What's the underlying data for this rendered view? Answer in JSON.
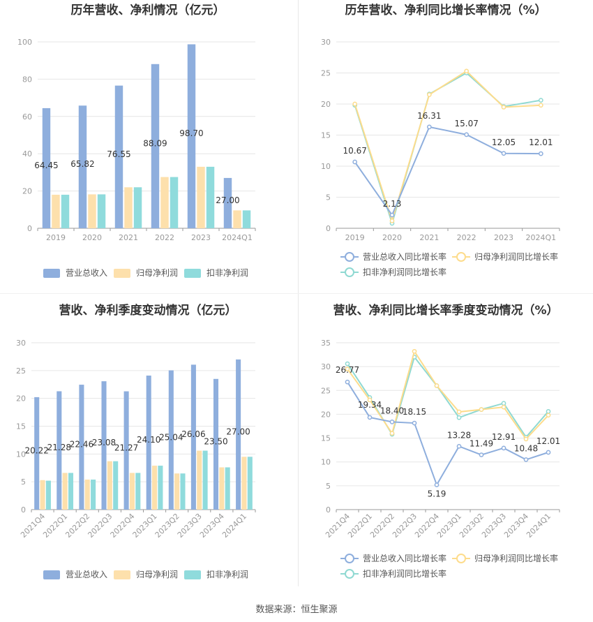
{
  "colors": {
    "revenue": "#8eaedd",
    "net_profit": "#fde0ac",
    "net_profit_ex": "#8fdbdc",
    "revenue_line": "#8eaedd",
    "np_line": "#fddc8c",
    "npex_line": "#8fd9d2"
  },
  "source": "数据来源：恒生聚源",
  "chart_data": [
    {
      "type": "bar",
      "title": "历年营收、净利情况（亿元）",
      "categories": [
        "2019",
        "2020",
        "2021",
        "2022",
        "2023",
        "2024Q1"
      ],
      "ylim": [
        0,
        100
      ],
      "yticks": [
        0,
        20,
        40,
        60,
        80,
        100
      ],
      "series": [
        {
          "name": "营业总收入",
          "values": [
            64.45,
            65.82,
            76.55,
            88.09,
            98.7,
            27.0
          ],
          "labels": [
            "64.45",
            "65.82",
            "76.55",
            "88.09",
            "98.70",
            "27.00"
          ]
        },
        {
          "name": "归母净利润",
          "values": [
            18.0,
            18.2,
            22.0,
            27.5,
            33.0,
            9.6
          ]
        },
        {
          "name": "扣非净利润",
          "values": [
            18.0,
            18.2,
            22.0,
            27.5,
            33.0,
            9.6
          ]
        }
      ],
      "legend": "bottom"
    },
    {
      "type": "line",
      "title": "历年营收、净利同比增长率情况（%）",
      "categories": [
        "2019",
        "2020",
        "2021",
        "2022",
        "2023",
        "2024Q1"
      ],
      "ylim": [
        0,
        30
      ],
      "yticks": [
        0,
        5,
        10,
        15,
        20,
        25,
        30
      ],
      "series": [
        {
          "name": "营业总收入同比增长率",
          "values": [
            10.67,
            2.13,
            16.31,
            15.07,
            12.05,
            12.01
          ],
          "labels": [
            "10.67",
            "2.13",
            "16.31",
            "15.07",
            "12.05",
            "12.01"
          ]
        },
        {
          "name": "归母净利润同比增长率",
          "values": [
            20.0,
            1.2,
            21.5,
            25.3,
            19.5,
            19.8
          ]
        },
        {
          "name": "扣非净利润同比增长率",
          "values": [
            19.8,
            0.8,
            21.6,
            25.0,
            19.6,
            20.6
          ]
        }
      ],
      "legend": "bottom"
    },
    {
      "type": "bar",
      "title": "营收、净利季度变动情况（亿元）",
      "categories": [
        "2021Q4",
        "2022Q1",
        "2022Q2",
        "2022Q3",
        "2022Q4",
        "2023Q1",
        "2023Q2",
        "2023Q3",
        "2023Q4",
        "2024Q1"
      ],
      "ylim": [
        0,
        30
      ],
      "yticks": [
        0,
        5,
        10,
        15,
        20,
        25,
        30
      ],
      "series": [
        {
          "name": "营业总收入",
          "values": [
            20.22,
            21.28,
            22.46,
            23.08,
            21.27,
            24.1,
            25.04,
            26.06,
            23.5,
            27.0
          ],
          "labels": [
            "20.22",
            "21.28",
            "22.46",
            "23.08",
            "21.27",
            "24.10",
            "25.04",
            "26.06",
            "23.50",
            "27.00"
          ]
        },
        {
          "name": "归母净利润",
          "values": [
            5.3,
            6.6,
            5.4,
            8.7,
            6.6,
            7.9,
            6.5,
            10.6,
            7.6,
            9.5
          ]
        },
        {
          "name": "扣非净利润",
          "values": [
            5.2,
            6.6,
            5.4,
            8.7,
            6.6,
            7.9,
            6.5,
            10.6,
            7.6,
            9.5
          ]
        }
      ],
      "legend": "bottom"
    },
    {
      "type": "line",
      "title": "营收、净利同比增长率季度变动情况（%）",
      "categories": [
        "2021Q4",
        "2022Q1",
        "2022Q2",
        "2022Q3",
        "2022Q4",
        "2023Q1",
        "2023Q2",
        "2023Q3",
        "2023Q4",
        "2024Q1"
      ],
      "ylim": [
        0,
        35
      ],
      "yticks": [
        0,
        5,
        10,
        15,
        20,
        25,
        30,
        35
      ],
      "series": [
        {
          "name": "营业总收入同比增长率",
          "values": [
            26.77,
            19.34,
            18.4,
            18.15,
            5.19,
            13.28,
            11.49,
            12.91,
            10.48,
            12.01
          ],
          "labels": [
            "26.77",
            "19.34",
            "18.40",
            "18.15",
            "5.19",
            "13.28",
            "11.49",
            "12.91",
            "10.48",
            "12.01"
          ]
        },
        {
          "name": "归母净利润同比增长率",
          "values": [
            29.5,
            23.0,
            16.0,
            33.2,
            26.0,
            20.5,
            21.0,
            21.5,
            14.8,
            19.8
          ]
        },
        {
          "name": "扣非净利润同比增长率",
          "values": [
            30.6,
            23.5,
            15.8,
            32.0,
            26.0,
            19.3,
            21.0,
            22.3,
            15.2,
            20.6
          ]
        }
      ],
      "legend": "bottom"
    }
  ]
}
